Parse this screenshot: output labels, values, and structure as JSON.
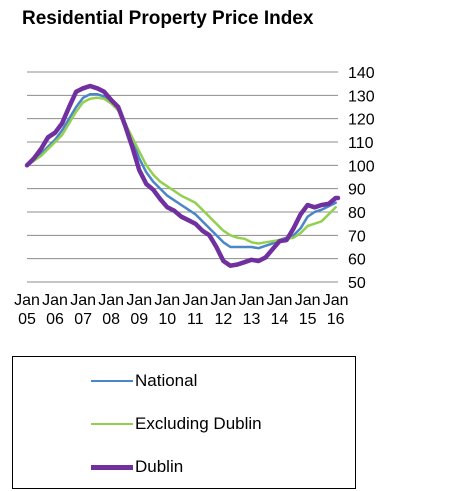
{
  "title": "Residential Property Price Index",
  "chart_data": {
    "type": "line",
    "title": "Residential Property Price Index",
    "xlabel": "",
    "ylabel": "",
    "ylim": [
      50,
      140
    ],
    "yticks": [
      50,
      60,
      70,
      80,
      90,
      100,
      110,
      120,
      130,
      140
    ],
    "xlim": [
      2005.0,
      2016.083
    ],
    "xticks": [
      {
        "top": "Jan",
        "bottom": "05",
        "x": 2005.0
      },
      {
        "top": "Jan",
        "bottom": "06",
        "x": 2006.0
      },
      {
        "top": "Jan",
        "bottom": "07",
        "x": 2007.0
      },
      {
        "top": "Jan",
        "bottom": "08",
        "x": 2008.0
      },
      {
        "top": "Jan",
        "bottom": "09",
        "x": 2009.0
      },
      {
        "top": "Jan",
        "bottom": "10",
        "x": 2010.0
      },
      {
        "top": "Jan",
        "bottom": "11",
        "x": 2011.0
      },
      {
        "top": "Jan",
        "bottom": "12",
        "x": 2012.0
      },
      {
        "top": "Jan",
        "bottom": "13",
        "x": 2013.0
      },
      {
        "top": "Jan",
        "bottom": "14",
        "x": 2014.0
      },
      {
        "top": "Jan",
        "bottom": "15",
        "x": 2015.0
      },
      {
        "top": "Jan",
        "bottom": "16",
        "x": 2016.0
      }
    ],
    "grid": "horizontal",
    "legend_position": "bottom-left",
    "series": [
      {
        "name": "National",
        "color": "#4a86c8",
        "width": 2.5,
        "x": [
          2005.0,
          2005.25,
          2005.5,
          2005.75,
          2006.0,
          2006.25,
          2006.5,
          2006.75,
          2007.0,
          2007.25,
          2007.5,
          2007.75,
          2008.0,
          2008.25,
          2008.5,
          2008.75,
          2009.0,
          2009.25,
          2009.5,
          2009.75,
          2010.0,
          2010.25,
          2010.5,
          2010.75,
          2011.0,
          2011.25,
          2011.5,
          2011.75,
          2012.0,
          2012.25,
          2012.5,
          2012.75,
          2013.0,
          2013.25,
          2013.5,
          2013.75,
          2014.0,
          2014.25,
          2014.5,
          2014.75,
          2015.0,
          2015.25,
          2015.5,
          2015.75,
          2016.0
        ],
        "y": [
          100,
          102,
          105,
          108,
          111,
          115,
          120,
          125,
          129,
          130.5,
          130.5,
          129.5,
          127,
          124,
          118,
          111,
          103,
          97,
          93,
          90,
          87,
          85,
          83,
          81,
          79,
          76,
          73,
          70,
          67,
          65,
          65,
          65,
          65,
          64.5,
          65.5,
          66.5,
          68,
          69,
          70,
          73,
          78,
          80,
          81,
          82.5,
          84
        ]
      },
      {
        "name": "Excluding Dublin",
        "color": "#92d050",
        "width": 2.5,
        "x": [
          2005.0,
          2005.25,
          2005.5,
          2005.75,
          2006.0,
          2006.25,
          2006.5,
          2006.75,
          2007.0,
          2007.25,
          2007.5,
          2007.75,
          2008.0,
          2008.25,
          2008.5,
          2008.75,
          2009.0,
          2009.25,
          2009.5,
          2009.75,
          2010.0,
          2010.25,
          2010.5,
          2010.75,
          2011.0,
          2011.25,
          2011.5,
          2011.75,
          2012.0,
          2012.25,
          2012.5,
          2012.75,
          2013.0,
          2013.25,
          2013.5,
          2013.75,
          2014.0,
          2014.25,
          2014.5,
          2014.75,
          2015.0,
          2015.25,
          2015.5,
          2015.75,
          2016.0
        ],
        "y": [
          100,
          102,
          104,
          107,
          110,
          113,
          118,
          123,
          127,
          128.5,
          129,
          128.5,
          126.5,
          123.5,
          118,
          112,
          106,
          100,
          96,
          93,
          91,
          89,
          87,
          85.5,
          84,
          81,
          78,
          75,
          72,
          70,
          69,
          68.5,
          67,
          66.5,
          67,
          67.5,
          68,
          68.5,
          69,
          71,
          74,
          75,
          76,
          79,
          82
        ]
      },
      {
        "name": "Dublin",
        "color": "#7030a0",
        "width": 4.5,
        "x": [
          2005.0,
          2005.25,
          2005.5,
          2005.75,
          2006.0,
          2006.25,
          2006.5,
          2006.75,
          2007.0,
          2007.25,
          2007.5,
          2007.75,
          2008.0,
          2008.25,
          2008.5,
          2008.75,
          2009.0,
          2009.25,
          2009.5,
          2009.75,
          2010.0,
          2010.25,
          2010.5,
          2010.75,
          2011.0,
          2011.25,
          2011.5,
          2011.75,
          2012.0,
          2012.25,
          2012.5,
          2012.75,
          2013.0,
          2013.25,
          2013.5,
          2013.75,
          2014.0,
          2014.25,
          2014.5,
          2014.75,
          2015.0,
          2015.25,
          2015.5,
          2015.75,
          2016.0,
          2016.083
        ],
        "y": [
          100,
          103,
          107,
          112,
          114,
          118,
          125,
          131.5,
          133,
          134,
          133,
          131.5,
          128,
          125,
          117,
          108,
          98,
          92,
          89.5,
          85.5,
          82,
          80.5,
          78,
          76.5,
          75,
          72,
          70,
          65,
          59,
          57,
          57.5,
          58.5,
          59.5,
          59,
          60.5,
          64,
          67.5,
          68,
          73,
          79,
          83,
          82,
          83,
          83.5,
          86,
          86
        ]
      }
    ]
  }
}
